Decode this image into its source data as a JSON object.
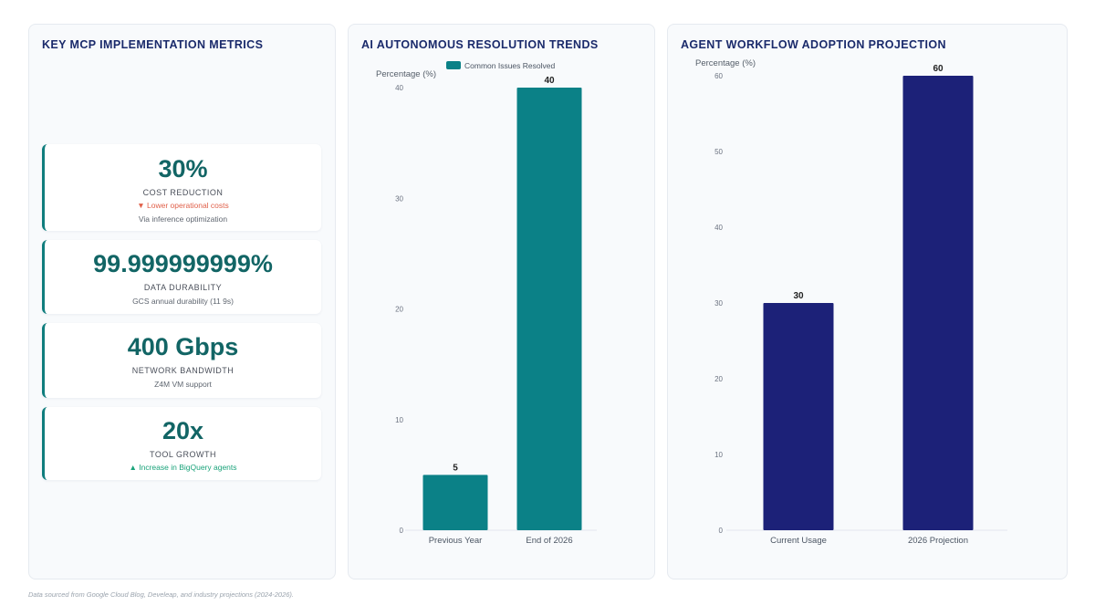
{
  "panels": {
    "metrics": {
      "title": "KEY MCP IMPLEMENTATION METRICS",
      "cards": [
        {
          "value": "30%",
          "label": "COST REDUCTION",
          "trend": "▼ Lower operational costs",
          "note": "Via inference optimization"
        },
        {
          "value": "99.999999999%",
          "label": "DATA DURABILITY",
          "note": "GCS annual durability (11 9s)"
        },
        {
          "value": "400 Gbps",
          "label": "NETWORK BANDWIDTH",
          "note": "Z4M VM support"
        },
        {
          "value": "20x",
          "label": "TOOL GROWTH",
          "trend": "▲ Increase in BigQuery agents"
        }
      ]
    },
    "resolution": {
      "title": "AI AUTONOMOUS RESOLUTION TRENDS"
    },
    "adoption": {
      "title": "AGENT WORKFLOW ADOPTION PROJECTION"
    }
  },
  "footnote": "Data sourced from Google Cloud Blog, Develeap, and industry projections (2024-2026).",
  "chart_data": [
    {
      "type": "bar",
      "title": "AI AUTONOMOUS RESOLUTION TRENDS",
      "categories": [
        "Previous Year",
        "End of 2026"
      ],
      "series": [
        {
          "name": "Common Issues Resolved",
          "values": [
            5,
            40
          ]
        }
      ],
      "ylabel": "Percentage (%)",
      "ylim": [
        0,
        40
      ],
      "yticks": [
        0,
        10,
        20,
        30,
        40
      ],
      "legend": "top",
      "color": "#0b8187",
      "data_labels": true
    },
    {
      "type": "bar",
      "title": "AGENT WORKFLOW ADOPTION PROJECTION",
      "categories": [
        "Current Usage",
        "2026 Projection"
      ],
      "series": [
        {
          "values": [
            30,
            60
          ]
        }
      ],
      "ylabel": "Percentage (%)",
      "ylim": [
        0,
        60
      ],
      "yticks": [
        0,
        10,
        20,
        30,
        40,
        50,
        60
      ],
      "legend": "none",
      "color": "#1c2178",
      "data_labels": true
    }
  ]
}
